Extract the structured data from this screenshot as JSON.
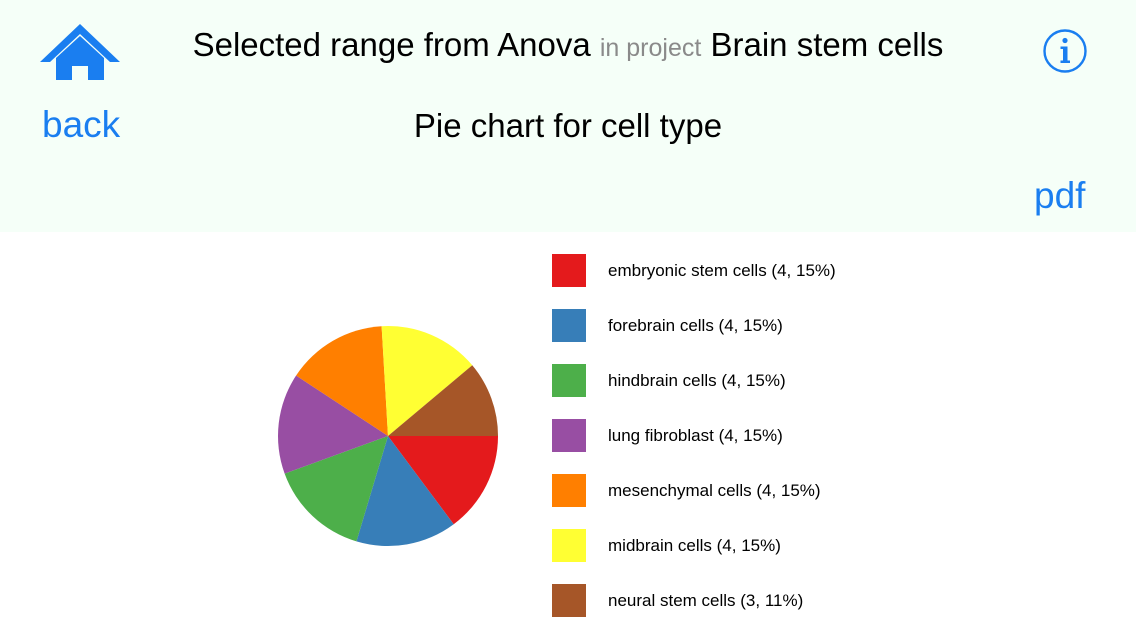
{
  "header": {
    "title_main": "Selected range from Anova",
    "title_mid": "in project",
    "title_project": "Brain stem cells",
    "back_label": "back",
    "subtitle": "Pie chart for cell type",
    "pdf_label": "pdf",
    "home_icon": "home-icon",
    "info_icon": "info-icon"
  },
  "colors": {
    "accent": "#1a7ef0",
    "header_bg": "#f5fff8"
  },
  "chart_data": {
    "type": "pie",
    "title": "Pie chart for cell type",
    "slices": [
      {
        "label": "embryonic stem cells (4, 15%)",
        "name": "embryonic stem cells",
        "count": 4,
        "percent": 15,
        "color": "#e41a1c"
      },
      {
        "label": "forebrain cells (4, 15%)",
        "name": "forebrain cells",
        "count": 4,
        "percent": 15,
        "color": "#377eb8"
      },
      {
        "label": "hindbrain cells (4, 15%)",
        "name": "hindbrain cells",
        "count": 4,
        "percent": 15,
        "color": "#4daf4a"
      },
      {
        "label": "lung fibroblast (4, 15%)",
        "name": "lung fibroblast",
        "count": 4,
        "percent": 15,
        "color": "#984ea3"
      },
      {
        "label": "mesenchymal cells (4, 15%)",
        "name": "mesenchymal cells",
        "count": 4,
        "percent": 15,
        "color": "#ff7f00"
      },
      {
        "label": "midbrain cells (4, 15%)",
        "name": "midbrain cells",
        "count": 4,
        "percent": 15,
        "color": "#ffff33"
      },
      {
        "label": "neural stem cells (3, 11%)",
        "name": "neural stem cells",
        "count": 3,
        "percent": 11,
        "color": "#a65628"
      }
    ]
  }
}
